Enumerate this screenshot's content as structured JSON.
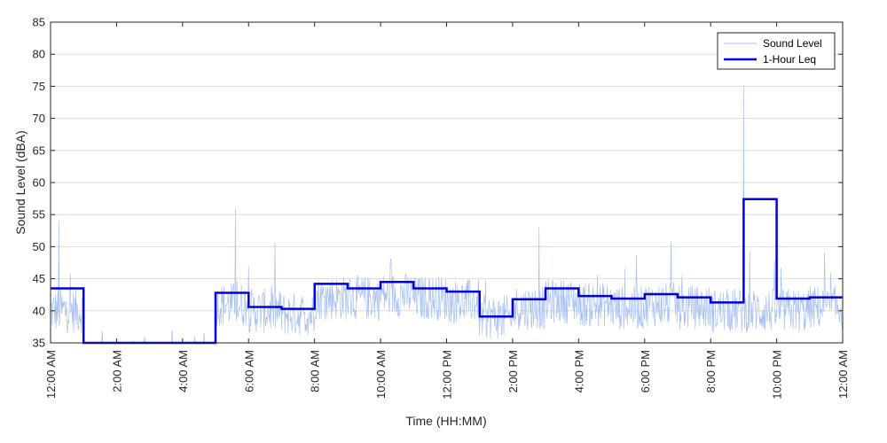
{
  "chart_data": {
    "type": "line",
    "xlabel": "Time (HH:MM)",
    "ylabel": "Sound Level (dBA)",
    "ylim": [
      35,
      85
    ],
    "xlim_hours": [
      0,
      24
    ],
    "y_ticks": [
      35,
      40,
      45,
      50,
      55,
      60,
      65,
      70,
      75,
      80,
      85
    ],
    "x_ticks": [
      {
        "hour": 0,
        "label": "12:00 AM"
      },
      {
        "hour": 2,
        "label": "2:00 AM"
      },
      {
        "hour": 4,
        "label": "4:00 AM"
      },
      {
        "hour": 6,
        "label": "6:00 AM"
      },
      {
        "hour": 8,
        "label": "8:00 AM"
      },
      {
        "hour": 10,
        "label": "10:00 AM"
      },
      {
        "hour": 12,
        "label": "12:00 PM"
      },
      {
        "hour": 14,
        "label": "2:00 PM"
      },
      {
        "hour": 16,
        "label": "4:00 PM"
      },
      {
        "hour": 18,
        "label": "6:00 PM"
      },
      {
        "hour": 20,
        "label": "8:00 PM"
      },
      {
        "hour": 22,
        "label": "10:00 PM"
      },
      {
        "hour": 24,
        "label": "12:00 AM"
      }
    ],
    "grid": "horizontal",
    "legend_position": "top-right",
    "series": [
      {
        "name": "Sound Level",
        "color": "#a9c1f2",
        "hourly_mean_dBA": [
          40,
          36,
          35,
          35,
          35,
          41,
          40,
          39.5,
          42,
          42,
          42.5,
          42,
          41.5,
          39,
          40.5,
          41.5,
          41,
          40.5,
          41,
          40.5,
          40,
          40,
          40,
          40.5
        ],
        "notable_peaks": [
          {
            "hour": 0.25,
            "value": 54
          },
          {
            "hour": 5.6,
            "value": 56
          },
          {
            "hour": 14.8,
            "value": 53
          },
          {
            "hour": 21.0,
            "value": 75
          }
        ]
      },
      {
        "name": "1-Hour Leq",
        "color": "#0000dd",
        "hourly_values": [
          43.5,
          35,
          35,
          35,
          35,
          42.8,
          40.6,
          40.3,
          44.2,
          43.5,
          44.5,
          43.5,
          43,
          39.1,
          41.8,
          43.5,
          42.3,
          41.9,
          42.6,
          42.1,
          41.3,
          57.4,
          41.9,
          42.1
        ]
      }
    ]
  }
}
